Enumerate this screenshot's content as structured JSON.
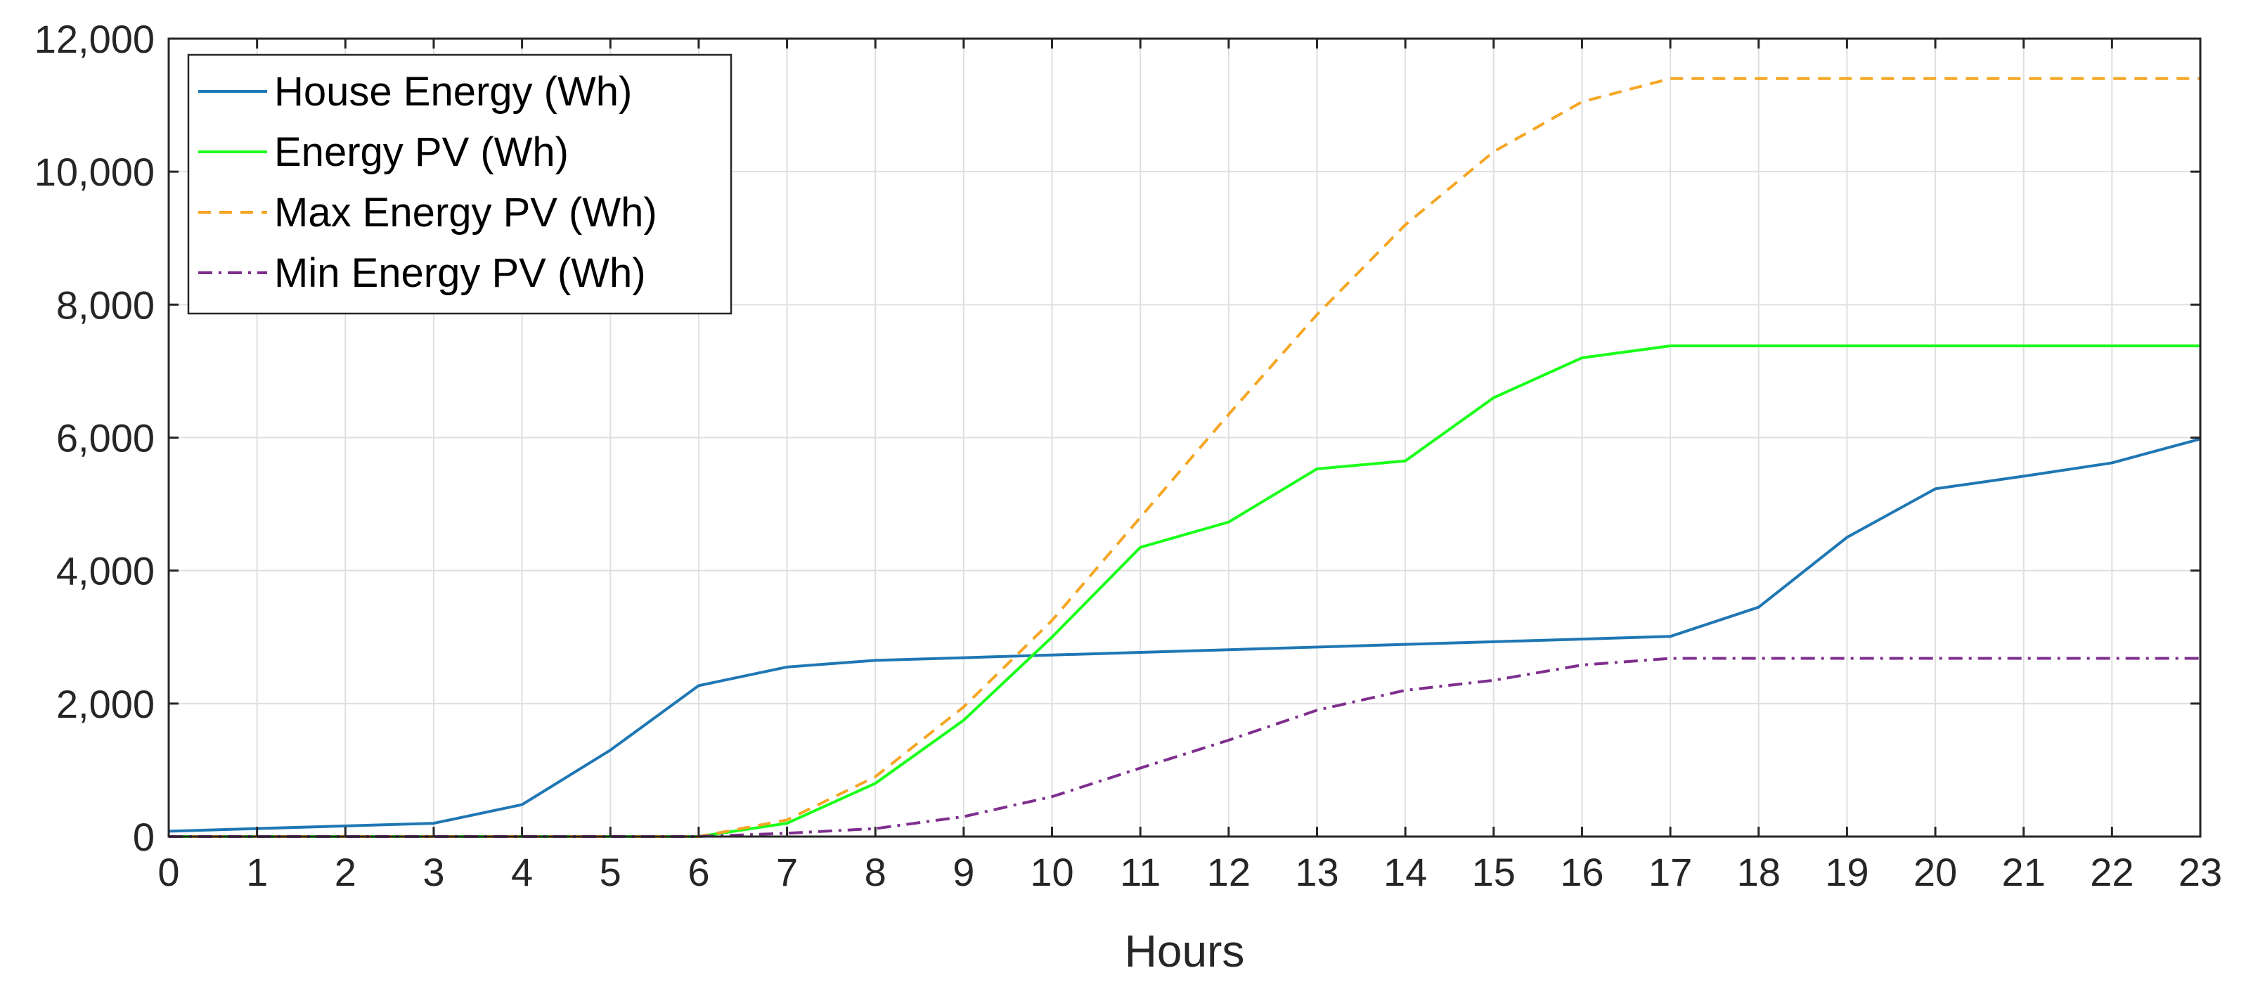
{
  "chart_data": {
    "type": "line",
    "title": "",
    "xlabel": "Hours",
    "ylabel": "",
    "xlim": [
      0,
      23
    ],
    "ylim": [
      0,
      12000
    ],
    "grid": true,
    "legend_position": "top-left",
    "x_ticks": [
      0,
      1,
      2,
      3,
      4,
      5,
      6,
      7,
      8,
      9,
      10,
      11,
      12,
      13,
      14,
      15,
      16,
      17,
      18,
      19,
      20,
      21,
      22,
      23
    ],
    "x_tick_labels": [
      "0",
      "1",
      "2",
      "3",
      "4",
      "5",
      "6",
      "7",
      "8",
      "9",
      "10",
      "11",
      "12",
      "13",
      "14",
      "15",
      "16",
      "17",
      "18",
      "19",
      "20",
      "21",
      "22",
      "23"
    ],
    "y_ticks": [
      0,
      2000,
      4000,
      6000,
      8000,
      10000,
      12000
    ],
    "y_tick_labels": [
      "0",
      "2,000",
      "4,000",
      "6,000",
      "8,000",
      "10,000",
      "12,000"
    ],
    "x": [
      0,
      1,
      2,
      3,
      4,
      5,
      6,
      7,
      8,
      9,
      10,
      11,
      12,
      13,
      14,
      15,
      16,
      17,
      18,
      19,
      20,
      21,
      22,
      23
    ],
    "series": [
      {
        "name": "House Energy (Wh)",
        "color": "#1f77b4",
        "dash": "solid",
        "values": [
          80,
          120,
          160,
          200,
          480,
          1300,
          2270,
          2550,
          2650,
          2690,
          2730,
          2770,
          2810,
          2850,
          2890,
          2930,
          2970,
          3010,
          3450,
          4500,
          5230,
          5420,
          5620,
          5980
        ]
      },
      {
        "name": "Energy PV (Wh)",
        "color": "#1aff1a",
        "dash": "solid",
        "values": [
          0,
          0,
          0,
          0,
          0,
          0,
          0,
          200,
          800,
          1750,
          3000,
          4350,
          4730,
          5530,
          5650,
          6600,
          7200,
          7380,
          7380,
          7380,
          7380,
          7380,
          7380,
          7380
        ]
      },
      {
        "name": "Max Energy PV (Wh)",
        "color": "#f5a623",
        "dash": "dashed",
        "values": [
          0,
          0,
          0,
          0,
          0,
          0,
          0,
          250,
          900,
          1950,
          3250,
          4800,
          6350,
          7850,
          9200,
          10300,
          11050,
          11400,
          11400,
          11400,
          11400,
          11400,
          11400,
          11400
        ]
      },
      {
        "name": "Min Energy PV (Wh)",
        "color": "#7e2f8e",
        "dash": "dashdot",
        "values": [
          0,
          0,
          0,
          0,
          0,
          0,
          0,
          50,
          120,
          300,
          600,
          1030,
          1450,
          1900,
          2200,
          2350,
          2580,
          2680,
          2680,
          2680,
          2680,
          2680,
          2680,
          2680
        ]
      }
    ]
  }
}
